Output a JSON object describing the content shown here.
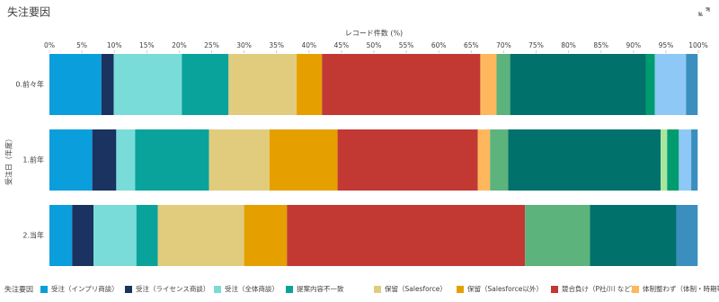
{
  "chart_data": {
    "type": "stacked-bar-horizontal-100",
    "title": "失注要因",
    "x_label": "レコード件数 (%)",
    "y_label": "受注日（年度）",
    "legend_title": "失注要因",
    "categories": [
      "0.前々年",
      "1.前年",
      "2.当年"
    ],
    "xlim": [
      0,
      100
    ],
    "xticks": [
      {
        "value": 0,
        "label": "0%"
      },
      {
        "value": 5,
        "label": "5%"
      },
      {
        "value": 10,
        "label": "10%"
      },
      {
        "value": 15,
        "label": "15%"
      },
      {
        "value": 20,
        "label": "20%"
      },
      {
        "value": 25,
        "label": "25%"
      },
      {
        "value": 30,
        "label": "30%"
      },
      {
        "value": 35,
        "label": "35%"
      },
      {
        "value": 40,
        "label": "40%"
      },
      {
        "value": 45,
        "label": "45%"
      },
      {
        "value": 50,
        "label": "50%"
      },
      {
        "value": 55,
        "label": "55%"
      },
      {
        "value": 60,
        "label": "60%"
      },
      {
        "value": 65,
        "label": "65%"
      },
      {
        "value": 70,
        "label": "70%"
      },
      {
        "value": 75,
        "label": "75%"
      },
      {
        "value": 80,
        "label": "80%"
      },
      {
        "value": 85,
        "label": "85%"
      },
      {
        "value": 90,
        "label": "90%"
      },
      {
        "value": 95,
        "label": "95%"
      },
      {
        "value": 100,
        "label": "100%"
      }
    ],
    "series": [
      {
        "name": "受注（インプリ商談）",
        "color": "#0b9edc",
        "values": [
          8.0,
          6.6,
          3.5
        ]
      },
      {
        "name": "受注（ライセンス商談）",
        "color": "#1a3360",
        "values": [
          1.9,
          3.7,
          3.3
        ]
      },
      {
        "name": "受注（全体商談）",
        "color": "#79dcd9",
        "values": [
          10.5,
          2.9,
          6.6
        ]
      },
      {
        "name": "提案内容不一致",
        "color": "#09a39b",
        "values": [
          7.2,
          11.4,
          3.3
        ]
      },
      {
        "name": "保留（Salesforce）",
        "color": "#e1cc7e",
        "values": [
          10.5,
          9.3,
          13.3
        ]
      },
      {
        "name": "保留（Salesforce以外）",
        "color": "#e5a000",
        "values": [
          3.9,
          10.5,
          6.6
        ]
      },
      {
        "name": "競合負け（P社/川 など）",
        "color": "#c23934",
        "values": [
          24.4,
          21.6,
          36.7
        ]
      },
      {
        "name": "体制整わず（体制・時期等）",
        "color": "#ffb75d",
        "values": [
          2.5,
          1.9,
          0
        ]
      },
      {
        "color": "#5cb37c",
        "values": [
          2.1,
          2.8,
          10.0
        ]
      },
      {
        "color": "#00716b",
        "values": [
          20.9,
          23.5,
          13.3
        ]
      },
      {
        "color": "#a8e6a0",
        "values": [
          0,
          1.0,
          0
        ]
      },
      {
        "color": "#009c6f",
        "values": [
          1.4,
          1.8,
          0
        ]
      },
      {
        "color": "#8dc8f7",
        "values": [
          4.8,
          1.9,
          0
        ]
      },
      {
        "color": "#3a8fbe",
        "values": [
          1.8,
          1.0,
          3.3
        ]
      }
    ]
  }
}
